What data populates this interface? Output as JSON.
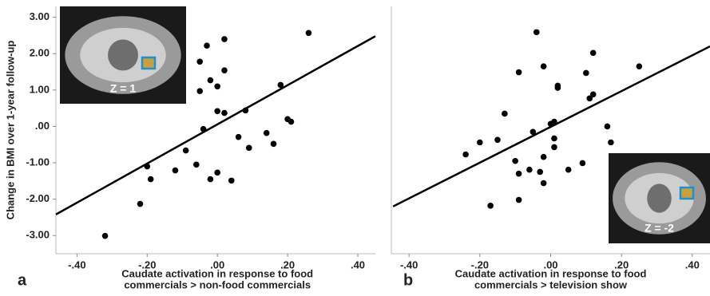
{
  "chart_data": [
    {
      "type": "scatter",
      "panel_label": "a",
      "y_label": "Change in BMI over 1-year follow-up",
      "x_label_lines": [
        "Caudate activation in response to food",
        "commercials > non-food commercials"
      ],
      "inset_label": "Z = 1",
      "color": "#000000",
      "x": [
        0.26,
        0.02,
        -0.03,
        -0.05,
        -0.02,
        0.02,
        0.0,
        -0.05,
        0.18,
        0.08,
        0.0,
        0.02,
        -0.04,
        0.06,
        0.14,
        0.16,
        0.09,
        0.2,
        0.21,
        -0.09,
        -0.12,
        -0.06,
        0.0,
        -0.02,
        0.04,
        -0.2,
        -0.19,
        -0.22,
        -0.32
      ],
      "y": [
        2.57,
        2.4,
        2.22,
        1.78,
        1.27,
        1.54,
        1.1,
        0.97,
        1.14,
        0.44,
        0.42,
        0.37,
        -0.07,
        -0.29,
        -0.18,
        -0.48,
        -0.59,
        0.2,
        0.13,
        -0.66,
        -1.21,
        -1.05,
        -1.27,
        -1.45,
        -1.49,
        -1.1,
        -1.45,
        -2.13,
        -3.01
      ],
      "fit_line": {
        "x": [
          -0.46,
          0.45
        ],
        "y": [
          -2.42,
          2.48
        ]
      },
      "xlim": [
        -0.46,
        0.45
      ],
      "ylim": [
        -3.5,
        3.3
      ],
      "xticks": [
        {
          "value": -0.4,
          "label": "-.40"
        },
        {
          "value": -0.2,
          "label": "-.20"
        },
        {
          "value": 0,
          "label": ".00"
        },
        {
          "value": 0.2,
          "label": ".20"
        },
        {
          "value": 0.4,
          "label": ".40"
        }
      ],
      "yticks": [
        {
          "value": 3,
          "label": "3.00"
        },
        {
          "value": 2,
          "label": "2.00"
        },
        {
          "value": 1,
          "label": "1.00"
        },
        {
          "value": 0,
          "label": ".00"
        },
        {
          "value": -1,
          "label": "-1.00"
        },
        {
          "value": -2,
          "label": "-2.00"
        },
        {
          "value": -3,
          "label": "-3.00"
        }
      ]
    },
    {
      "type": "scatter",
      "panel_label": "b",
      "x_label_lines": [
        "Caudate activation in response to food",
        "commercials > television show"
      ],
      "inset_label": "Z = -2",
      "color": "#000000",
      "x": [
        -0.04,
        0.12,
        -0.09,
        -0.02,
        0.02,
        0.02,
        0.1,
        0.12,
        0.11,
        0.25,
        -0.13,
        -0.05,
        0.01,
        0.0,
        0.01,
        0.01,
        -0.02,
        0.16,
        0.17,
        0.09,
        -0.1,
        -0.2,
        -0.15,
        -0.24,
        -0.06,
        -0.09,
        -0.03,
        0.05,
        -0.02,
        -0.09,
        -0.17
      ],
      "y": [
        2.59,
        2.02,
        1.49,
        1.65,
        1.12,
        1.06,
        1.47,
        0.88,
        0.77,
        1.65,
        0.35,
        -0.15,
        0.13,
        0.07,
        -0.33,
        -0.57,
        -0.84,
        0.0,
        -0.44,
        -1.01,
        -0.95,
        -0.44,
        -0.37,
        -0.77,
        -1.19,
        -1.3,
        -1.25,
        -1.19,
        -1.56,
        -2.02,
        -2.18
      ],
      "fit_line": {
        "x": [
          -0.445,
          0.45
        ],
        "y": [
          -2.2,
          2.2
        ]
      },
      "xlim": [
        -0.45,
        0.45
      ],
      "ylim": [
        -3.5,
        3.3
      ],
      "xticks": [
        {
          "value": -0.4,
          "label": "-.40"
        },
        {
          "value": -0.2,
          "label": "-.20"
        },
        {
          "value": 0,
          "label": ".00"
        },
        {
          "value": 0.2,
          "label": ".20"
        },
        {
          "value": 0.4,
          "label": ".40"
        }
      ]
    }
  ]
}
